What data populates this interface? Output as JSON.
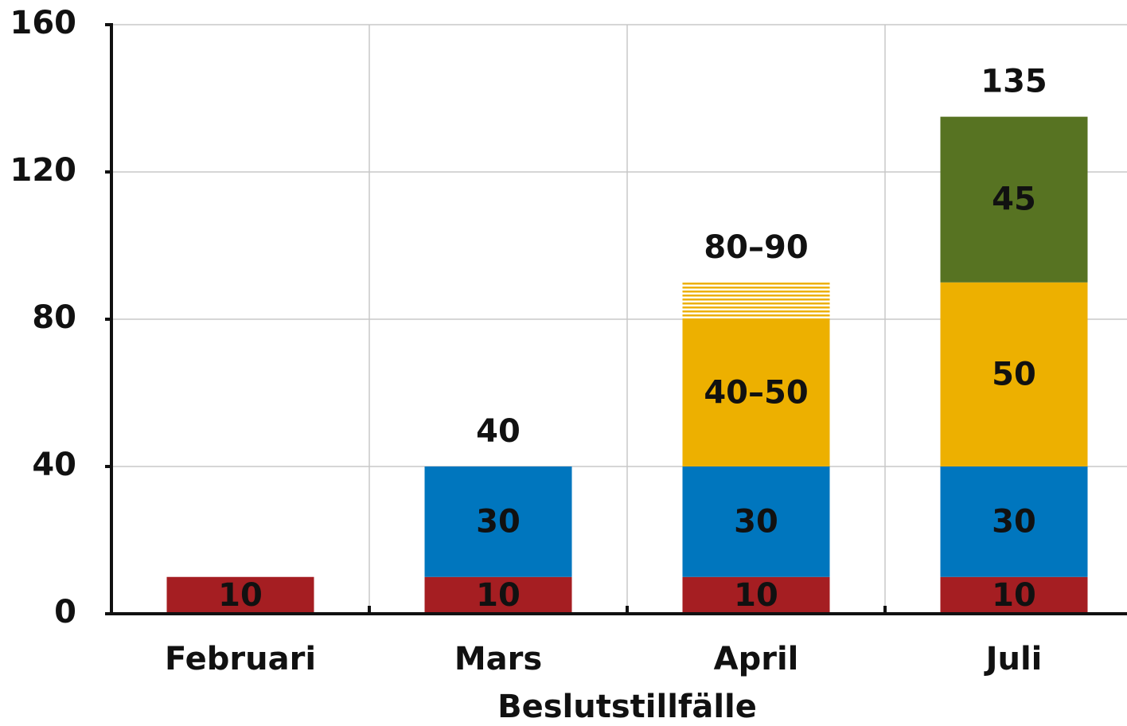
{
  "chart_data": {
    "type": "stacked_bar",
    "x_label": "Beslutstillfälle",
    "categories": [
      "Februari",
      "Mars",
      "April",
      "Juli"
    ],
    "series": [
      {
        "color": "#a51e22",
        "values": [
          10,
          10,
          10,
          10
        ]
      },
      {
        "color": "#0076be",
        "values": [
          null,
          30,
          30,
          30
        ]
      },
      {
        "color": "#edb000",
        "values": [
          null,
          null,
          40,
          50
        ],
        "value_labels": [
          null,
          null,
          "40–50",
          "50"
        ]
      },
      {
        "color": "#edb000",
        "hatched": true,
        "values": [
          null,
          null,
          10,
          null
        ]
      },
      {
        "color": "#577322",
        "values": [
          null,
          null,
          null,
          45
        ]
      }
    ],
    "totals": {
      "values": [
        null,
        40,
        90,
        135
      ],
      "value_labels": [
        null,
        "40",
        "80–90",
        "135"
      ]
    },
    "ylim": [
      0,
      160
    ],
    "yticks": [
      0,
      40,
      80,
      120,
      160
    ],
    "grid": true
  }
}
